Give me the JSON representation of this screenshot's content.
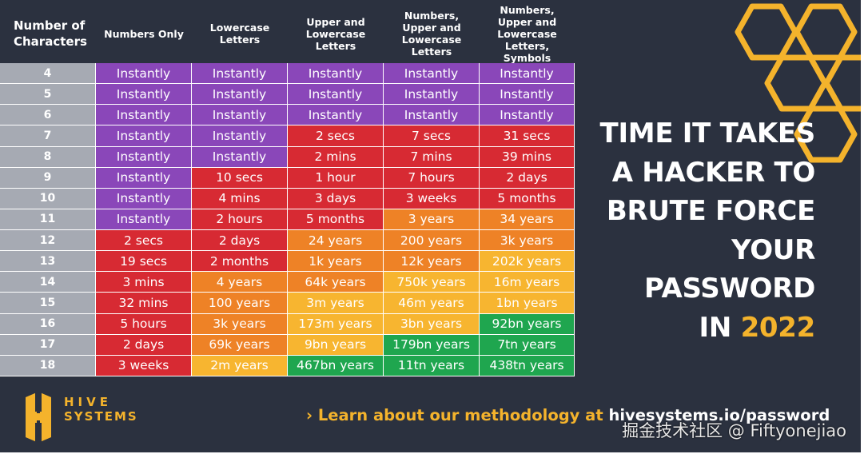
{
  "title": {
    "lines": [
      "TIME IT TAKES",
      "A HACKER TO",
      "BRUTE FORCE",
      "YOUR",
      "PASSWORD"
    ],
    "last_prefix": "IN ",
    "year": "2022"
  },
  "table": {
    "headers": [
      "Number of Characters",
      "Numbers Only",
      "Lowercase Letters",
      "Upper and Lowercase Letters",
      "Numbers, Upper and Lowercase Letters",
      "Numbers, Upper and Lowercase Letters, Symbols"
    ],
    "rows": [
      {
        "chars": "4",
        "cells": [
          [
            "Instantly",
            "purple"
          ],
          [
            "Instantly",
            "purple"
          ],
          [
            "Instantly",
            "purple"
          ],
          [
            "Instantly",
            "purple"
          ],
          [
            "Instantly",
            "purple"
          ]
        ]
      },
      {
        "chars": "5",
        "cells": [
          [
            "Instantly",
            "purple"
          ],
          [
            "Instantly",
            "purple"
          ],
          [
            "Instantly",
            "purple"
          ],
          [
            "Instantly",
            "purple"
          ],
          [
            "Instantly",
            "purple"
          ]
        ]
      },
      {
        "chars": "6",
        "cells": [
          [
            "Instantly",
            "purple"
          ],
          [
            "Instantly",
            "purple"
          ],
          [
            "Instantly",
            "purple"
          ],
          [
            "Instantly",
            "purple"
          ],
          [
            "Instantly",
            "purple"
          ]
        ]
      },
      {
        "chars": "7",
        "cells": [
          [
            "Instantly",
            "purple"
          ],
          [
            "Instantly",
            "purple"
          ],
          [
            "2 secs",
            "red"
          ],
          [
            "7 secs",
            "red"
          ],
          [
            "31 secs",
            "red"
          ]
        ]
      },
      {
        "chars": "8",
        "cells": [
          [
            "Instantly",
            "purple"
          ],
          [
            "Instantly",
            "purple"
          ],
          [
            "2 mins",
            "red"
          ],
          [
            "7 mins",
            "red"
          ],
          [
            "39 mins",
            "red"
          ]
        ]
      },
      {
        "chars": "9",
        "cells": [
          [
            "Instantly",
            "purple"
          ],
          [
            "10 secs",
            "red"
          ],
          [
            "1 hour",
            "red"
          ],
          [
            "7 hours",
            "red"
          ],
          [
            "2 days",
            "red"
          ]
        ]
      },
      {
        "chars": "10",
        "cells": [
          [
            "Instantly",
            "purple"
          ],
          [
            "4 mins",
            "red"
          ],
          [
            "3 days",
            "red"
          ],
          [
            "3 weeks",
            "red"
          ],
          [
            "5 months",
            "red"
          ]
        ]
      },
      {
        "chars": "11",
        "cells": [
          [
            "Instantly",
            "purple"
          ],
          [
            "2 hours",
            "red"
          ],
          [
            "5 months",
            "red"
          ],
          [
            "3 years",
            "orange"
          ],
          [
            "34 years",
            "orange"
          ]
        ]
      },
      {
        "chars": "12",
        "cells": [
          [
            "2 secs",
            "red"
          ],
          [
            "2 days",
            "red"
          ],
          [
            "24 years",
            "orange"
          ],
          [
            "200 years",
            "orange"
          ],
          [
            "3k years",
            "orange"
          ]
        ]
      },
      {
        "chars": "13",
        "cells": [
          [
            "19 secs",
            "red"
          ],
          [
            "2 months",
            "red"
          ],
          [
            "1k years",
            "orange"
          ],
          [
            "12k years",
            "orange"
          ],
          [
            "202k years",
            "yellow"
          ]
        ]
      },
      {
        "chars": "14",
        "cells": [
          [
            "3 mins",
            "red"
          ],
          [
            "4 years",
            "orange"
          ],
          [
            "64k years",
            "orange"
          ],
          [
            "750k years",
            "yellow"
          ],
          [
            "16m years",
            "yellow"
          ]
        ]
      },
      {
        "chars": "15",
        "cells": [
          [
            "32 mins",
            "red"
          ],
          [
            "100 years",
            "orange"
          ],
          [
            "3m years",
            "yellow"
          ],
          [
            "46m years",
            "yellow"
          ],
          [
            "1bn years",
            "yellow"
          ]
        ]
      },
      {
        "chars": "16",
        "cells": [
          [
            "5 hours",
            "red"
          ],
          [
            "3k years",
            "orange"
          ],
          [
            "173m years",
            "yellow"
          ],
          [
            "3bn years",
            "yellow"
          ],
          [
            "92bn years",
            "green"
          ]
        ]
      },
      {
        "chars": "17",
        "cells": [
          [
            "2 days",
            "red"
          ],
          [
            "69k years",
            "orange"
          ],
          [
            "9bn years",
            "yellow"
          ],
          [
            "179bn years",
            "green"
          ],
          [
            "7tn years",
            "green"
          ]
        ]
      },
      {
        "chars": "18",
        "cells": [
          [
            "3 weeks",
            "red"
          ],
          [
            "2m years",
            "yellow"
          ],
          [
            "467bn years",
            "green"
          ],
          [
            "11tn years",
            "green"
          ],
          [
            "438tn years",
            "green"
          ]
        ]
      }
    ]
  },
  "colors": {
    "purple": "#8a47b9",
    "red": "#d72a33",
    "orange": "#ee8226",
    "yellow": "#f7b530",
    "green": "#1fa64f",
    "accent": "#f4b32c",
    "background": "#2b313f",
    "row_label": "#a6aab3"
  },
  "logo": {
    "line1": "HIVE",
    "line2": "SYSTEMS",
    "icon": "hive-logo-icon"
  },
  "footer": {
    "arrow": "›",
    "text": "Learn about our methodology at ",
    "url": "hivesystems.io/password"
  },
  "watermark": "掘金技术社区 @ Fiftyonejiao"
}
